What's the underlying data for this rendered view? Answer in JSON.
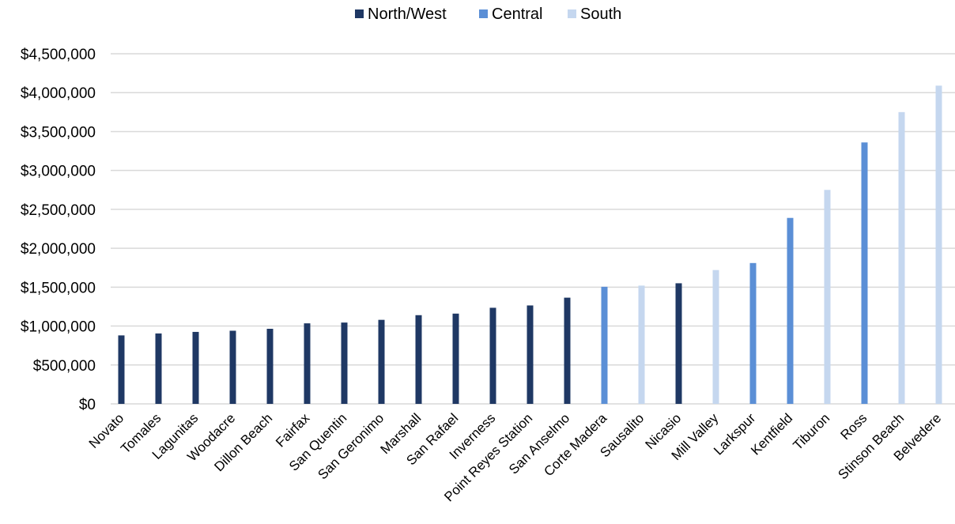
{
  "chart_data": {
    "type": "bar",
    "title": "",
    "xlabel": "",
    "ylabel": "",
    "ylim": [
      0,
      4500000
    ],
    "y_ticks": [
      0,
      500000,
      1000000,
      1500000,
      2000000,
      2500000,
      3000000,
      3500000,
      4000000,
      4500000
    ],
    "y_tick_labels": [
      "$0",
      "$500,000",
      "$1,000,000",
      "$1,500,000",
      "$2,000,000",
      "$2,500,000",
      "$3,000,000",
      "$3,500,000",
      "$4,000,000",
      "$4,500,000"
    ],
    "grid": true,
    "legend_position": "top-center",
    "series": [
      {
        "name": "North/West",
        "color": "#1f3864"
      },
      {
        "name": "Central",
        "color": "#5b8fd6"
      },
      {
        "name": "South",
        "color": "#c5d7ef"
      }
    ],
    "categories": [
      "Novato",
      "Tomales",
      "Lagunitas",
      "Woodacre",
      "Dillon Beach",
      "Fairfax",
      "San Quentin",
      "San Geronimo",
      "Marshall",
      "San Rafael",
      "Inverness",
      "Point Reyes Station",
      "San Anselmo",
      "Corte Madera",
      "Sausalito",
      "Nicasio",
      "Mill Valley",
      "Larkspur",
      "Kentfield",
      "Tiburon",
      "Ross",
      "Stinson Beach",
      "Belvedere"
    ],
    "values": [
      880000,
      905000,
      925000,
      940000,
      965000,
      1035000,
      1045000,
      1080000,
      1140000,
      1160000,
      1235000,
      1265000,
      1365000,
      1505000,
      1520000,
      1550000,
      1720000,
      1810000,
      2390000,
      2750000,
      3360000,
      3750000,
      4090000
    ],
    "region": [
      "North/West",
      "North/West",
      "North/West",
      "North/West",
      "North/West",
      "North/West",
      "North/West",
      "North/West",
      "North/West",
      "North/West",
      "North/West",
      "North/West",
      "North/West",
      "Central",
      "South",
      "North/West",
      "South",
      "Central",
      "Central",
      "South",
      "Central",
      "South",
      "South"
    ]
  }
}
